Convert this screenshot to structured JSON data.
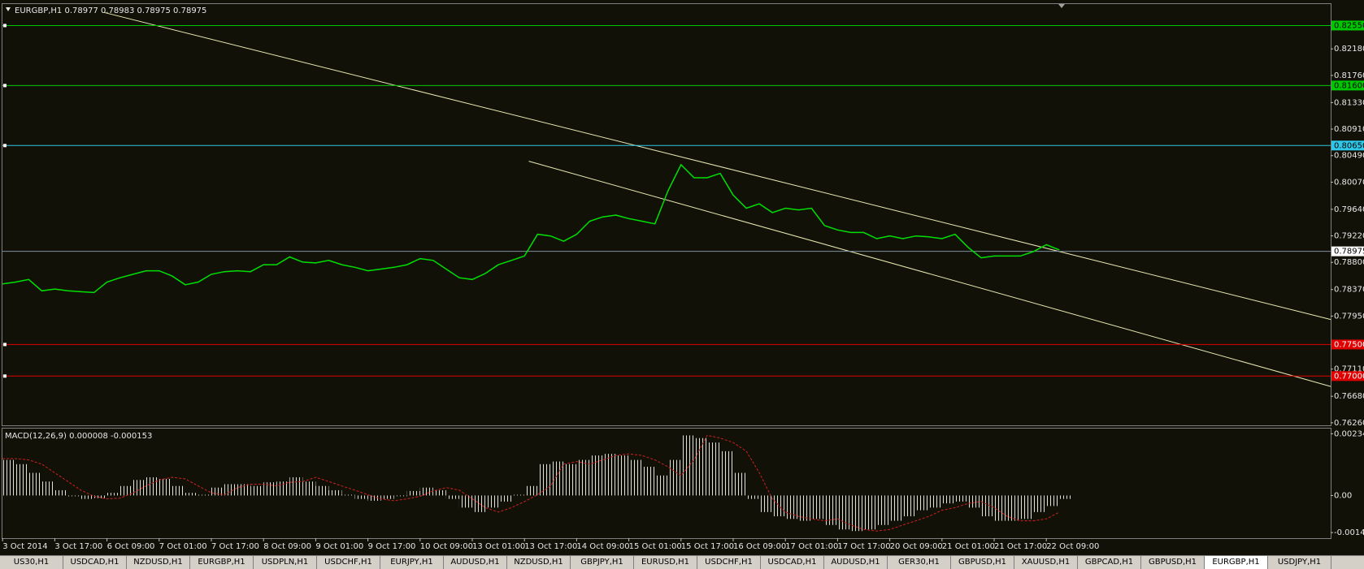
{
  "chart_data": [
    {
      "type": "line",
      "title": "EURGBP,H1  0.78977 0.78983 0.78975 0.78975",
      "categories": [
        "3 Oct 2014",
        null,
        null,
        null,
        "3 Oct 17:00",
        null,
        null,
        null,
        "6 Oct 09:00",
        null,
        null,
        null,
        "7 Oct 01:00",
        null,
        null,
        null,
        "7 Oct 17:00",
        null,
        null,
        null,
        "8 Oct 09:00",
        null,
        null,
        null,
        "9 Oct 01:00",
        null,
        null,
        null,
        "9 Oct 17:00",
        null,
        null,
        null,
        "10 Oct 09:00",
        null,
        null,
        null,
        "13 Oct 01:00",
        null,
        null,
        null,
        "13 Oct 17:00",
        null,
        null,
        null,
        "14 Oct 09:00",
        null,
        null,
        null,
        "15 Oct 01:00",
        null,
        null,
        null,
        "15 Oct 17:00",
        null,
        null,
        null,
        "16 Oct 09:00",
        null,
        null,
        null,
        "17 Oct 01:00",
        null,
        null,
        null,
        "17 Oct 17:00",
        null,
        null,
        null,
        "20 Oct 09:00",
        null,
        null,
        null,
        "21 Oct 01:00",
        null,
        null,
        null,
        "21 Oct 17:00",
        null,
        null,
        null,
        "22 Oct 09:00",
        null
      ],
      "series": [
        {
          "color": "#00e000",
          "values": [
            0.7846,
            0.78488,
            0.78529,
            0.7835,
            0.78378,
            0.7835,
            0.78336,
            0.78323,
            0.78488,
            0.78557,
            0.78612,
            0.78667,
            0.78667,
            0.78584,
            0.78446,
            0.78488,
            0.78612,
            0.78653,
            0.78667,
            0.78653,
            0.78763,
            0.78763,
            0.78887,
            0.78804,
            0.78791,
            0.78832,
            0.78763,
            0.78722,
            0.78667,
            0.78694,
            0.78722,
            0.78763,
            0.7886,
            0.78832,
            0.78694,
            0.78557,
            0.78529,
            0.78625,
            0.78763,
            0.78832,
            0.78901,
            0.79245,
            0.79218,
            0.79135,
            0.79245,
            0.79452,
            0.7952,
            0.79548,
            0.79493,
            0.79452,
            0.7941,
            0.79934,
            0.80347,
            0.8014,
            0.8014,
            0.80209,
            0.79865,
            0.79658,
            0.79727,
            0.79589,
            0.79658,
            0.79631,
            0.79658,
            0.79383,
            0.79314,
            0.79273,
            0.79273,
            0.79176,
            0.79218,
            0.79176,
            0.79218,
            0.79204,
            0.79176,
            0.79245,
            0.79039,
            0.78873,
            0.78901,
            0.78901,
            0.78901,
            0.7897,
            0.7908,
            0.78997
          ]
        }
      ],
      "ylim": [
        0.7622,
        0.8289
      ],
      "yticks": [
        {
          "value": 0.8218,
          "label": "0.82180"
        },
        {
          "value": 0.8176,
          "label": "0.81760"
        },
        {
          "value": 0.8133,
          "label": "0.81330"
        },
        {
          "value": 0.8091,
          "label": "0.80910"
        },
        {
          "value": 0.8049,
          "label": "0.80490"
        },
        {
          "value": 0.8007,
          "label": "0.80070"
        },
        {
          "value": 0.7964,
          "label": "0.79640"
        },
        {
          "value": 0.7922,
          "label": "0.79220"
        },
        {
          "value": 0.788,
          "label": "0.78800"
        },
        {
          "value": 0.7837,
          "label": "0.78370"
        },
        {
          "value": 0.7795,
          "label": "0.77950"
        },
        {
          "value": 0.7711,
          "label": "0.77110"
        },
        {
          "value": 0.7668,
          "label": "0.76680"
        },
        {
          "value": 0.7626,
          "label": "0.76260"
        }
      ],
      "levels": [
        {
          "value": 0.8255,
          "label": "0.82550",
          "color": "#00c800",
          "text_color": "#000000"
        },
        {
          "value": 0.816,
          "label": "0.81600",
          "color": "#00c800",
          "text_color": "#000000"
        },
        {
          "value": 0.8065,
          "label": "0.80650",
          "color": "#30c8e8",
          "text_color": "#000000"
        },
        {
          "value": 0.775,
          "label": "0.77500",
          "color": "#e00000",
          "text_color": "#ffffff"
        },
        {
          "value": 0.77,
          "label": "0.77000",
          "color": "#e00000",
          "text_color": "#ffffff"
        }
      ],
      "current_price": 0.78975,
      "trendlines": [
        {
          "color": "#e8e8b0",
          "points": [
            [
              7.8,
              0.82756
            ],
            [
              101.8,
              0.77896
            ]
          ]
        },
        {
          "color": "#e8e8b0",
          "points": [
            [
              40.33,
              0.80402
            ],
            [
              101.8,
              0.76835
            ]
          ]
        }
      ]
    },
    {
      "type": "bar",
      "title": "MACD(12,26,9) 0.000008 -0.000153",
      "series": [
        {
          "color": "#e0e0e0",
          "values": [
            0.00135,
            0.00119,
            0.00086,
            0.00053,
            0.0002,
            -3e-05,
            -0.00013,
            -0.0001,
            0.0001,
            0.00036,
            0.00059,
            0.00069,
            0.00063,
            0.00036,
            0.0001,
            3e-05,
            0.0003,
            0.00043,
            0.00043,
            0.00036,
            0.0005,
            0.00053,
            0.00069,
            0.00053,
            0.00036,
            0.0002,
            3e-05,
            -0.00013,
            -0.0002,
            -0.00013,
            -3e-05,
            0.00017,
            0.0003,
            0.0002,
            -0.00013,
            -0.00046,
            -0.00063,
            -0.00046,
            -0.00023,
            3e-05,
            0.00036,
            0.00119,
            0.00129,
            0.00119,
            0.00135,
            0.00152,
            0.00158,
            0.00152,
            0.00135,
            0.00109,
            0.00076,
            0.00135,
            0.00228,
            0.00218,
            0.00201,
            0.00168,
            0.00086,
            -0.00013,
            -0.00063,
            -0.00079,
            -0.00089,
            -0.00096,
            -0.00089,
            -0.00112,
            -0.00129,
            -0.00135,
            -0.00129,
            -0.00112,
            -0.00096,
            -0.00079,
            -0.00056,
            -0.00046,
            -0.0003,
            -0.00023,
            -0.00046,
            -0.00079,
            -0.00096,
            -0.00096,
            -0.00089,
            -0.00063,
            -0.0004,
            -0.00013
          ]
        },
        {
          "type": "line",
          "dash": true,
          "color": "#d02020",
          "values": [
            0.0014,
            0.0014,
            0.00135,
            0.00119,
            0.00086,
            0.00053,
            0.0002,
            -3e-05,
            -0.00013,
            -0.0001,
            0.0001,
            0.00036,
            0.00059,
            0.00069,
            0.00063,
            0.00036,
            0.0001,
            3e-05,
            0.0003,
            0.00043,
            0.00043,
            0.00036,
            0.0005,
            0.00053,
            0.00069,
            0.00053,
            0.00036,
            0.0002,
            3e-05,
            -0.00013,
            -0.0002,
            -0.00013,
            -3e-05,
            0.00017,
            0.0003,
            0.0002,
            -0.00013,
            -0.00046,
            -0.00063,
            -0.00046,
            -0.00023,
            3e-05,
            0.00036,
            0.00119,
            0.00129,
            0.00119,
            0.00135,
            0.00152,
            0.00158,
            0.00152,
            0.00135,
            0.00109,
            0.00076,
            0.00135,
            0.00228,
            0.00218,
            0.00201,
            0.00168,
            0.00086,
            -0.00013,
            -0.00063,
            -0.00079,
            -0.00089,
            -0.00096,
            -0.00089,
            -0.00112,
            -0.00129,
            -0.00135,
            -0.00129,
            -0.00112,
            -0.00096,
            -0.00079,
            -0.00056,
            -0.00046,
            -0.0003,
            -0.00023,
            -0.00046,
            -0.00079,
            -0.00096,
            -0.00096,
            -0.00089,
            -0.00063
          ]
        }
      ],
      "ylim": [
        -0.00162,
        0.00254
      ],
      "yticks": [
        0.002343,
        {
          "value": 0,
          "label": "0.00"
        },
        -0.00141
      ]
    }
  ],
  "tabs": [
    "US30,H1",
    "USDCAD,H1",
    "NZDUSD,H1",
    "EURGBP,H1",
    "USDPLN,H1",
    "USDCHF,H1",
    "EURJPY,H1",
    "AUDUSD,H1",
    "NZDUSD,H1",
    "GBPJPY,H1",
    "EURUSD,H1",
    "USDCHF,H1",
    "USDCAD,H1",
    "AUDUSD,H1",
    "GER30,H1",
    "GBPUSD,H1",
    "XAUUSD,H1",
    "GBPCAD,H1",
    "GBPUSD,H1",
    "EURGBP,H1",
    "USDJPY,H1"
  ],
  "active_tab": 19
}
